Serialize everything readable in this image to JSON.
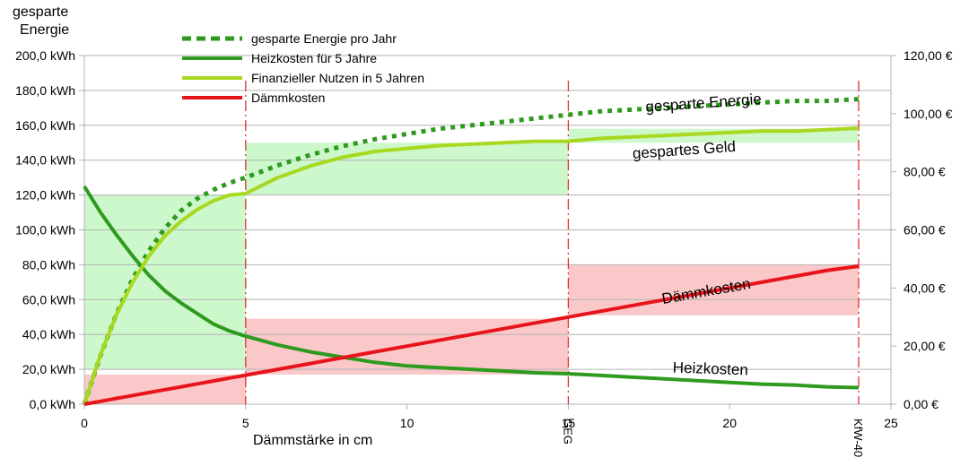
{
  "chart_data": {
    "type": "line",
    "ylabel": [
      "gesparte",
      "Energie"
    ],
    "xlabel": "Dämmstärke in cm",
    "xlim": [
      0,
      25
    ],
    "ylim_left": [
      0,
      200
    ],
    "ylim_right": [
      0,
      120
    ],
    "x_ticks": [
      0,
      5,
      10,
      15,
      20,
      25
    ],
    "y_ticks_left": [
      "0,0 kWh",
      "20,0 kWh",
      "40,0 kWh",
      "60,0 kWh",
      "80,0 kWh",
      "100,0 kWh",
      "120,0 kWh",
      "140,0 kWh",
      "160,0 kWh",
      "180,0 kWh",
      "200,0 kWh"
    ],
    "y_ticks_right": [
      "0,00 €",
      "20,00 €",
      "40,00 €",
      "60,00 €",
      "80,00 €",
      "100,00 €",
      "120,00 €"
    ],
    "grid": "horizontal",
    "legend_position": "top-left",
    "x": [
      0,
      0.5,
      1,
      1.5,
      2,
      2.5,
      3,
      3.5,
      4,
      4.5,
      5,
      6,
      7,
      8,
      9,
      10,
      11,
      12,
      13,
      14,
      15,
      16,
      17,
      18,
      19,
      20,
      21,
      22,
      23,
      24
    ],
    "series": [
      {
        "name": "gesparte Energie pro Jahr",
        "axis": "left",
        "style": "dotted",
        "color": "#2e9a1e",
        "values": [
          0,
          28,
          52,
          72,
          88,
          101,
          111,
          118,
          123,
          127,
          130,
          137,
          143,
          148,
          152,
          155,
          158,
          160,
          162,
          164,
          166,
          168,
          169,
          170,
          171,
          172,
          173,
          174,
          174,
          175
        ]
      },
      {
        "name": "Heizkosten für 5 Jahre",
        "axis": "left",
        "style": "solid",
        "color": "#2e9a1e",
        "values": [
          125,
          110,
          97,
          85,
          74,
          65,
          58,
          52,
          46,
          42,
          39,
          34,
          30,
          27,
          24,
          22,
          21,
          20,
          19,
          18,
          17.5,
          16.5,
          15.5,
          14.5,
          13.5,
          12.5,
          11.5,
          11,
          10,
          9.5
        ]
      },
      {
        "name": "Finanzieller Nutzen in 5 Jahren",
        "axis": "right",
        "style": "solid",
        "color": "#a8d820",
        "values": [
          0,
          17,
          31,
          42,
          51,
          58,
          63,
          67,
          70,
          72,
          72.5,
          78,
          82,
          85,
          87,
          88,
          89,
          89.5,
          90,
          90.5,
          90.5,
          91.5,
          92,
          92.5,
          93,
          93.5,
          94,
          94,
          94.5,
          95
        ]
      },
      {
        "name": "Dämmkosten",
        "axis": "right",
        "style": "solid",
        "color": "#e8141b",
        "values": [
          0,
          1,
          2,
          3,
          4,
          5,
          6,
          7,
          8,
          9,
          10,
          12,
          14,
          16,
          18,
          20,
          22,
          24,
          26,
          28,
          30,
          32,
          34,
          36,
          38,
          40,
          42,
          44,
          46,
          47.5
        ]
      }
    ],
    "vertical_markers": [
      {
        "x": 5,
        "label": ""
      },
      {
        "x": 15,
        "label": "GEG"
      },
      {
        "x": 24,
        "label": "KfW-40"
      }
    ],
    "shaded_regions": [
      {
        "kind": "saving",
        "x": [
          0,
          5
        ],
        "y": [
          20,
          120
        ],
        "color": "#ccf8cc"
      },
      {
        "kind": "saving",
        "x": [
          5,
          15
        ],
        "y": [
          120,
          150
        ],
        "color": "#ccf8cc"
      },
      {
        "kind": "saving",
        "x": [
          15,
          24
        ],
        "y": [
          150,
          158
        ],
        "color": "#ccf8cc"
      },
      {
        "kind": "cost",
        "x": [
          0,
          5
        ],
        "y": [
          0,
          17
        ],
        "color": "#fac8c8"
      },
      {
        "kind": "cost",
        "x": [
          5,
          15
        ],
        "y": [
          17,
          49
        ],
        "color": "#fac8c8"
      },
      {
        "kind": "cost",
        "x": [
          15,
          24
        ],
        "y": [
          51,
          80
        ],
        "color": "#fac8c8"
      }
    ],
    "annotations": [
      {
        "text": "gesparte Energie",
        "x": 19.2,
        "y": 170,
        "rotate": -4
      },
      {
        "text": "gespartes Geld",
        "x": 18.6,
        "y": 143,
        "rotate": -4
      },
      {
        "text": "Dämmkosten",
        "x": 19.3,
        "y": 62,
        "rotate": -10
      },
      {
        "text": "Heizkosten",
        "x": 19.4,
        "y": 17.5,
        "rotate": 2
      }
    ]
  }
}
